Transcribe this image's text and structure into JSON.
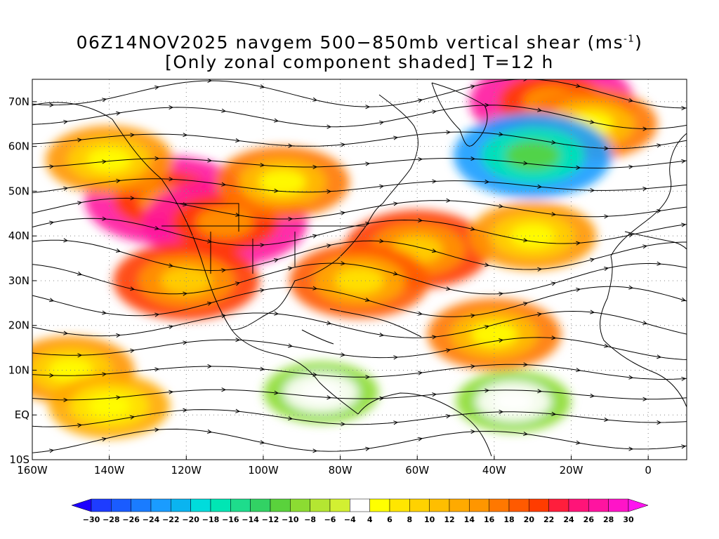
{
  "title": {
    "line1_prefix": "06Z14NOV2025 navgem 500−850mb vertical shear (ms",
    "line1_sup": "-1",
    "line1_suffix": ")",
    "line2": "[Only zonal component shaded] T=12 h"
  },
  "axes": {
    "lat_labels": [
      "70N",
      "60N",
      "50N",
      "40N",
      "30N",
      "20N",
      "10N",
      "EQ",
      "10S"
    ],
    "lat_values": [
      70,
      60,
      50,
      40,
      30,
      20,
      10,
      0,
      -10
    ],
    "lon_labels": [
      "160W",
      "140W",
      "120W",
      "100W",
      "80W",
      "60W",
      "40W",
      "20W",
      "0"
    ],
    "lon_values": [
      -160,
      -140,
      -120,
      -100,
      -80,
      -60,
      -40,
      -20,
      0
    ],
    "lon_range": [
      -160,
      10
    ],
    "lat_range": [
      -10,
      75
    ]
  },
  "colorbar": {
    "labels": [
      "-30",
      "-28",
      "-26",
      "-24",
      "-22",
      "-20",
      "-18",
      "-16",
      "-14",
      "-12",
      "-10",
      "-8",
      "-6",
      "-4",
      "4",
      "6",
      "8",
      "10",
      "12",
      "14",
      "16",
      "18",
      "20",
      "22",
      "24",
      "26",
      "28",
      "30"
    ],
    "colors": [
      "#1e3cff",
      "#1a5cff",
      "#1a7cff",
      "#1a9cff",
      "#0ab4f0",
      "#00dcdc",
      "#00e6b4",
      "#1edc8c",
      "#32d264",
      "#5ad23c",
      "#8cdc32",
      "#b4e632",
      "#d2f032",
      "#ffffff",
      "#ffff00",
      "#ffe600",
      "#ffd200",
      "#ffbe00",
      "#ffaa00",
      "#ff9600",
      "#ff7800",
      "#ff5a00",
      "#ff3c00",
      "#ff1e3c",
      "#ff1478",
      "#ff14a0",
      "#ff14c8"
    ],
    "min_arrow_color": "#1e00ff",
    "max_arrow_color": "#ff14f0"
  },
  "shear_regions": [
    {
      "lon": -125,
      "lat": 48,
      "value": 26
    },
    {
      "lon": -110,
      "lat": 43,
      "value": 26
    },
    {
      "lon": -95,
      "lat": 52,
      "value": 16
    },
    {
      "lon": -140,
      "lat": 57,
      "value": 14
    },
    {
      "lon": -60,
      "lat": 37,
      "value": 20
    },
    {
      "lon": -75,
      "lat": 30,
      "value": 18
    },
    {
      "lon": -30,
      "lat": 40,
      "value": 14
    },
    {
      "lon": -25,
      "lat": 70,
      "value": 26
    },
    {
      "lon": -15,
      "lat": 65,
      "value": 16
    },
    {
      "lon": -30,
      "lat": 58,
      "value": -24
    },
    {
      "lon": -150,
      "lat": 10,
      "value": 14
    },
    {
      "lon": -140,
      "lat": 2,
      "value": 12
    },
    {
      "lon": -40,
      "lat": 18,
      "value": 16
    },
    {
      "lon": -85,
      "lat": 5,
      "value": -10
    },
    {
      "lon": -35,
      "lat": 3,
      "value": -10
    },
    {
      "lon": -120,
      "lat": 30,
      "value": 20
    }
  ]
}
